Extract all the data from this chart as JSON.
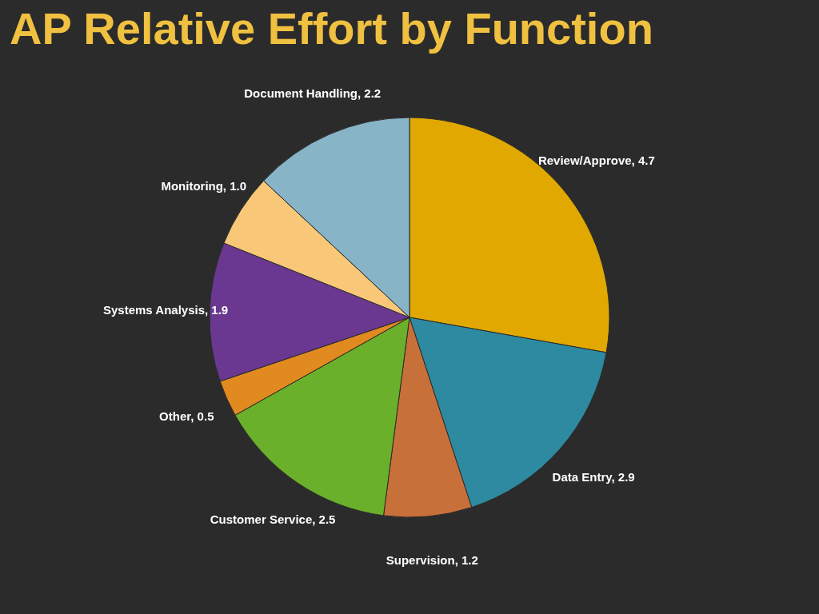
{
  "chart_data": {
    "type": "pie",
    "title": "AP Relative Effort by Function",
    "categories": [
      "Review/Approve",
      "Data Entry",
      "Supervision",
      "Customer Service",
      "Other",
      "Systems Analysis",
      "Monitoring",
      "Document Handling"
    ],
    "values": [
      4.7,
      2.9,
      1.2,
      2.5,
      0.5,
      1.9,
      1.0,
      2.2
    ],
    "value_labels": [
      "4.7",
      "2.9",
      "1.2",
      "2.5",
      "0.5",
      "1.9",
      "1.0",
      "2.2"
    ],
    "colors": [
      "#e0a800",
      "#2e8aa0",
      "#c8703a",
      "#6ab02a",
      "#e08a20",
      "#6a3890",
      "#f8c878",
      "#88b4c8"
    ],
    "legend": false
  }
}
